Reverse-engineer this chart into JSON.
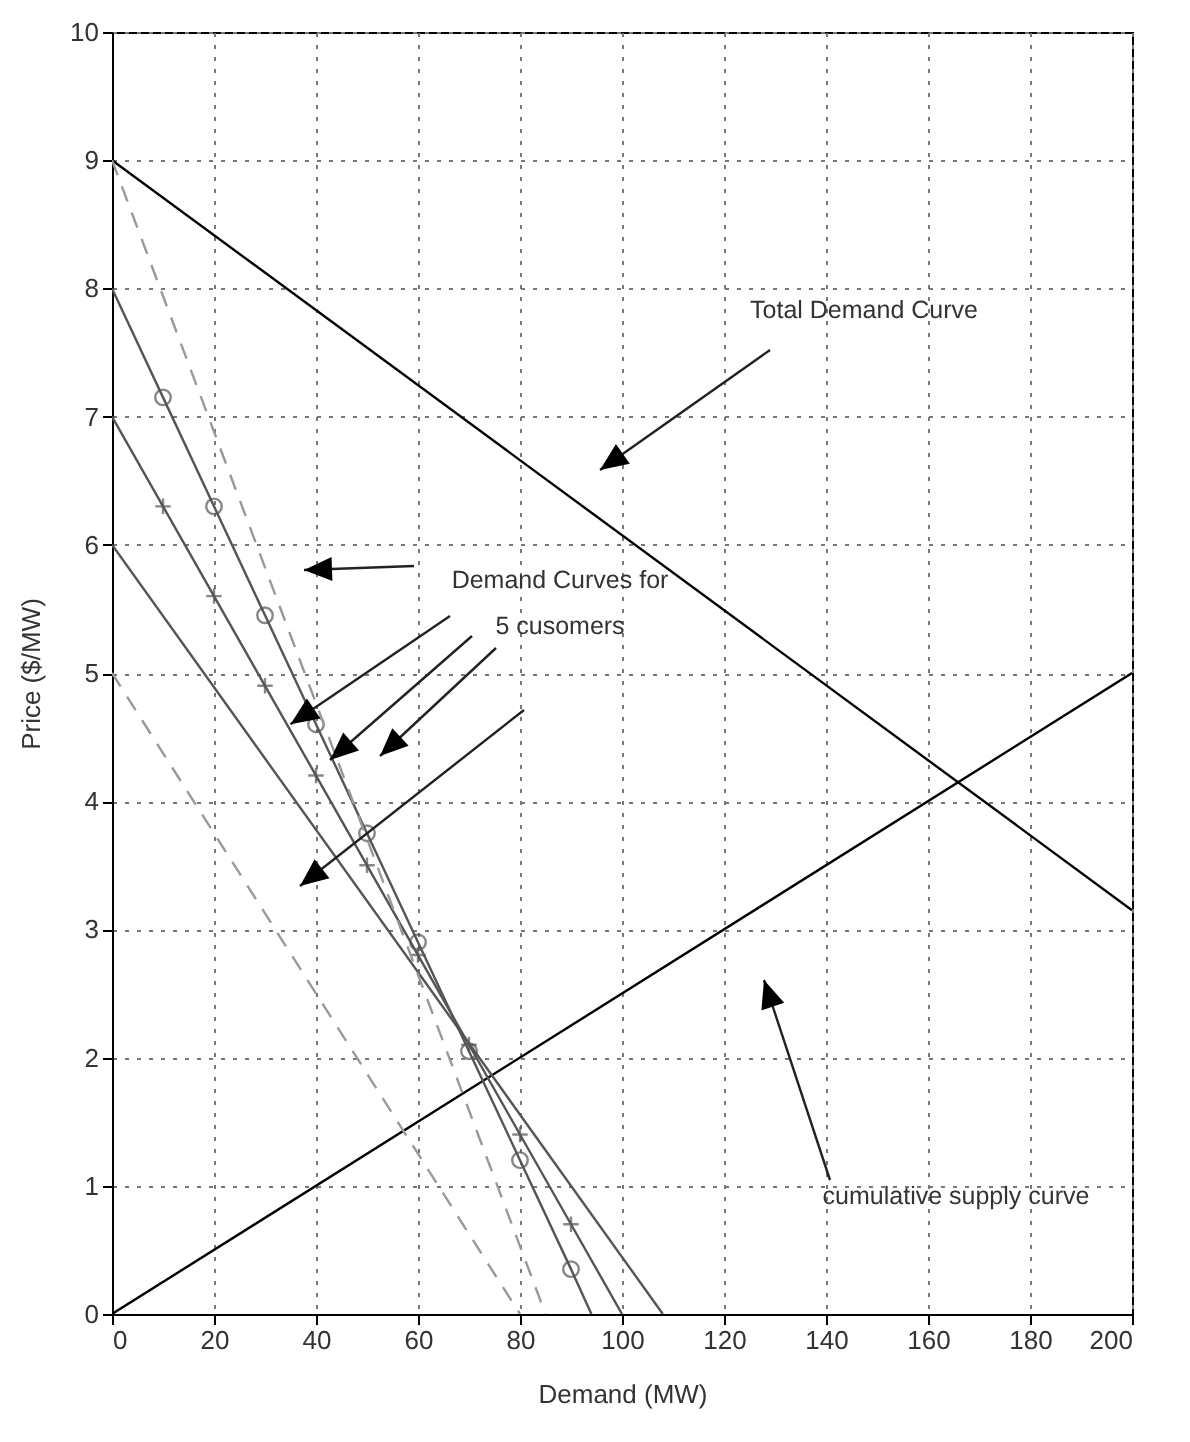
{
  "chart_data": {
    "type": "line",
    "xlabel": "Demand (MW)",
    "ylabel": "Price ($/MW)",
    "xlim": [
      0,
      200
    ],
    "ylim": [
      0,
      10
    ],
    "xticks": [
      0,
      20,
      40,
      60,
      80,
      100,
      120,
      140,
      160,
      180,
      200
    ],
    "yticks": [
      0,
      1,
      2,
      3,
      4,
      5,
      6,
      7,
      8,
      9,
      10
    ],
    "grid": true,
    "series": [
      {
        "color": "#000000",
        "x": [
          0,
          200
        ],
        "values": [
          9,
          3.15
        ],
        "line_style": "solid",
        "marker": "none"
      },
      {
        "color": "#000000",
        "x": [
          0,
          200
        ],
        "values": [
          0,
          5
        ],
        "line_style": "solid",
        "marker": "none"
      },
      {
        "color": "#555555",
        "x": [
          0,
          10,
          20,
          30,
          40,
          50,
          60,
          70,
          80,
          90,
          94
        ],
        "values": [
          8,
          7.15,
          6.3,
          5.45,
          4.6,
          3.75,
          2.9,
          2.05,
          1.2,
          0.35,
          0
        ],
        "line_style": "solid",
        "marker": "circle"
      },
      {
        "color": "#555555",
        "x": [
          0,
          10,
          20,
          30,
          40,
          50,
          60,
          70,
          80,
          90,
          100
        ],
        "values": [
          7,
          6.3,
          5.6,
          4.9,
          4.2,
          3.5,
          2.8,
          2.1,
          1.4,
          0.7,
          0
        ],
        "line_style": "solid",
        "marker": "cross"
      },
      {
        "color": "#555555",
        "x": [
          0,
          108
        ],
        "values": [
          6,
          0
        ],
        "line_style": "solid",
        "marker": "none"
      },
      {
        "color": "#999999",
        "x": [
          0,
          85
        ],
        "values": [
          9,
          0
        ],
        "line_style": "dashed",
        "marker": "none"
      },
      {
        "color": "#999999",
        "x": [
          0,
          80
        ],
        "values": [
          5,
          0
        ],
        "line_style": "dashed",
        "marker": "none"
      }
    ],
    "annotations": [
      "Total Demand Curve",
      {
        "text": "Demand Curves for\n5 cusomers",
        "x": 35,
        "y": 4.6
      },
      "cumulative supply curve"
    ]
  }
}
